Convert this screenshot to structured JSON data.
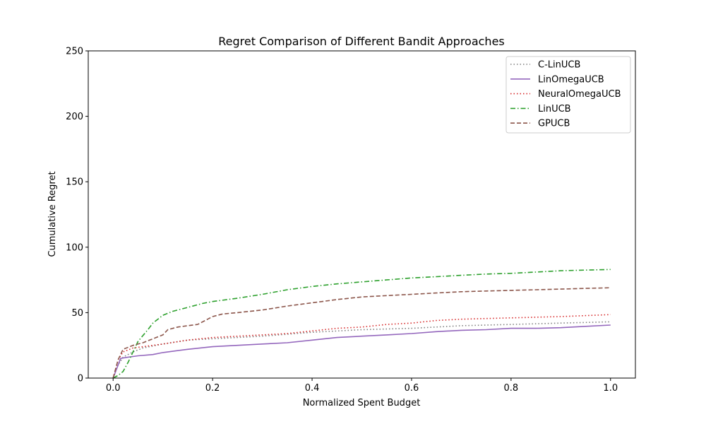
{
  "chart_data": {
    "type": "line",
    "title": "Regret Comparison of Different Bandit Approaches",
    "xlabel": "Normalized Spent Budget",
    "ylabel": "Cumulative Regret",
    "xlim": [
      -0.05,
      1.05
    ],
    "ylim": [
      0,
      250
    ],
    "xticks": [
      0.0,
      0.2,
      0.4,
      0.6,
      0.8,
      1.0
    ],
    "xtick_labels": [
      "0.0",
      "0.2",
      "0.4",
      "0.6",
      "0.8",
      "1.0"
    ],
    "yticks": [
      0,
      50,
      100,
      150,
      200,
      250
    ],
    "ytick_labels": [
      "0",
      "50",
      "100",
      "150",
      "200",
      "250"
    ],
    "grid": false,
    "legend_position": "top-right",
    "series": [
      {
        "name": "C-LinUCB",
        "color": "#7f7f7f",
        "style": "dotted",
        "points": [
          [
            0,
            0
          ],
          [
            0.01,
            10
          ],
          [
            0.02,
            16
          ],
          [
            0.04,
            20
          ],
          [
            0.06,
            23
          ],
          [
            0.1,
            26
          ],
          [
            0.15,
            29
          ],
          [
            0.2,
            30
          ],
          [
            0.3,
            32
          ],
          [
            0.4,
            35
          ],
          [
            0.5,
            37
          ],
          [
            0.6,
            38
          ],
          [
            0.7,
            40
          ],
          [
            0.8,
            41
          ],
          [
            0.9,
            42
          ],
          [
            1.0,
            43
          ]
        ]
      },
      {
        "name": "LinOmegaUCB",
        "color": "#9467bd",
        "style": "solid",
        "points": [
          [
            0,
            0
          ],
          [
            0.01,
            10
          ],
          [
            0.015,
            15
          ],
          [
            0.03,
            16
          ],
          [
            0.05,
            17
          ],
          [
            0.08,
            18
          ],
          [
            0.1,
            19.5
          ],
          [
            0.15,
            22
          ],
          [
            0.2,
            24
          ],
          [
            0.25,
            25
          ],
          [
            0.3,
            26
          ],
          [
            0.35,
            27
          ],
          [
            0.4,
            29
          ],
          [
            0.45,
            31
          ],
          [
            0.5,
            32
          ],
          [
            0.55,
            33
          ],
          [
            0.6,
            34
          ],
          [
            0.65,
            35.5
          ],
          [
            0.7,
            36.5
          ],
          [
            0.75,
            37
          ],
          [
            0.8,
            38
          ],
          [
            0.85,
            38
          ],
          [
            0.9,
            38.5
          ],
          [
            0.95,
            39.5
          ],
          [
            1.0,
            40.5
          ]
        ]
      },
      {
        "name": "NeuralOmegaUCB",
        "color": "#d62728",
        "style": "dotted",
        "points": [
          [
            0,
            0
          ],
          [
            0.01,
            14
          ],
          [
            0.02,
            20
          ],
          [
            0.04,
            23
          ],
          [
            0.06,
            24
          ],
          [
            0.1,
            26
          ],
          [
            0.15,
            29
          ],
          [
            0.2,
            31
          ],
          [
            0.3,
            33
          ],
          [
            0.35,
            34
          ],
          [
            0.4,
            36
          ],
          [
            0.45,
            38
          ],
          [
            0.5,
            39
          ],
          [
            0.55,
            41
          ],
          [
            0.6,
            42
          ],
          [
            0.65,
            44
          ],
          [
            0.7,
            45
          ],
          [
            0.8,
            46
          ],
          [
            0.9,
            47
          ],
          [
            1.0,
            48.5
          ]
        ]
      },
      {
        "name": "LinUCB",
        "color": "#2ca02c",
        "style": "dashdot",
        "points": [
          [
            0,
            0
          ],
          [
            0.01,
            2
          ],
          [
            0.02,
            5
          ],
          [
            0.03,
            12
          ],
          [
            0.04,
            20
          ],
          [
            0.05,
            28
          ],
          [
            0.07,
            37
          ],
          [
            0.08,
            42
          ],
          [
            0.1,
            48
          ],
          [
            0.12,
            51
          ],
          [
            0.15,
            54
          ],
          [
            0.18,
            57
          ],
          [
            0.2,
            58.5
          ],
          [
            0.25,
            61
          ],
          [
            0.3,
            64
          ],
          [
            0.35,
            67.5
          ],
          [
            0.4,
            70
          ],
          [
            0.45,
            72
          ],
          [
            0.5,
            73.5
          ],
          [
            0.55,
            75
          ],
          [
            0.6,
            76.5
          ],
          [
            0.65,
            77.5
          ],
          [
            0.7,
            78.5
          ],
          [
            0.75,
            79.5
          ],
          [
            0.8,
            80
          ],
          [
            0.85,
            81
          ],
          [
            0.9,
            82
          ],
          [
            0.95,
            82.5
          ],
          [
            1.0,
            83
          ]
        ]
      },
      {
        "name": "GPUCB",
        "color": "#8c564b",
        "style": "dashed",
        "points": [
          [
            0,
            0
          ],
          [
            0.01,
            14
          ],
          [
            0.02,
            22
          ],
          [
            0.04,
            25
          ],
          [
            0.06,
            27
          ],
          [
            0.08,
            30
          ],
          [
            0.1,
            33
          ],
          [
            0.11,
            37
          ],
          [
            0.13,
            39
          ],
          [
            0.15,
            40
          ],
          [
            0.17,
            41
          ],
          [
            0.19,
            45
          ],
          [
            0.2,
            47
          ],
          [
            0.22,
            49
          ],
          [
            0.25,
            50
          ],
          [
            0.3,
            52
          ],
          [
            0.35,
            55
          ],
          [
            0.4,
            57.5
          ],
          [
            0.45,
            60
          ],
          [
            0.5,
            62
          ],
          [
            0.55,
            63
          ],
          [
            0.6,
            64
          ],
          [
            0.65,
            65
          ],
          [
            0.7,
            66
          ],
          [
            0.75,
            66.5
          ],
          [
            0.8,
            67
          ],
          [
            0.85,
            67.5
          ],
          [
            0.9,
            68
          ],
          [
            0.95,
            68.5
          ],
          [
            1.0,
            69
          ]
        ]
      }
    ]
  }
}
